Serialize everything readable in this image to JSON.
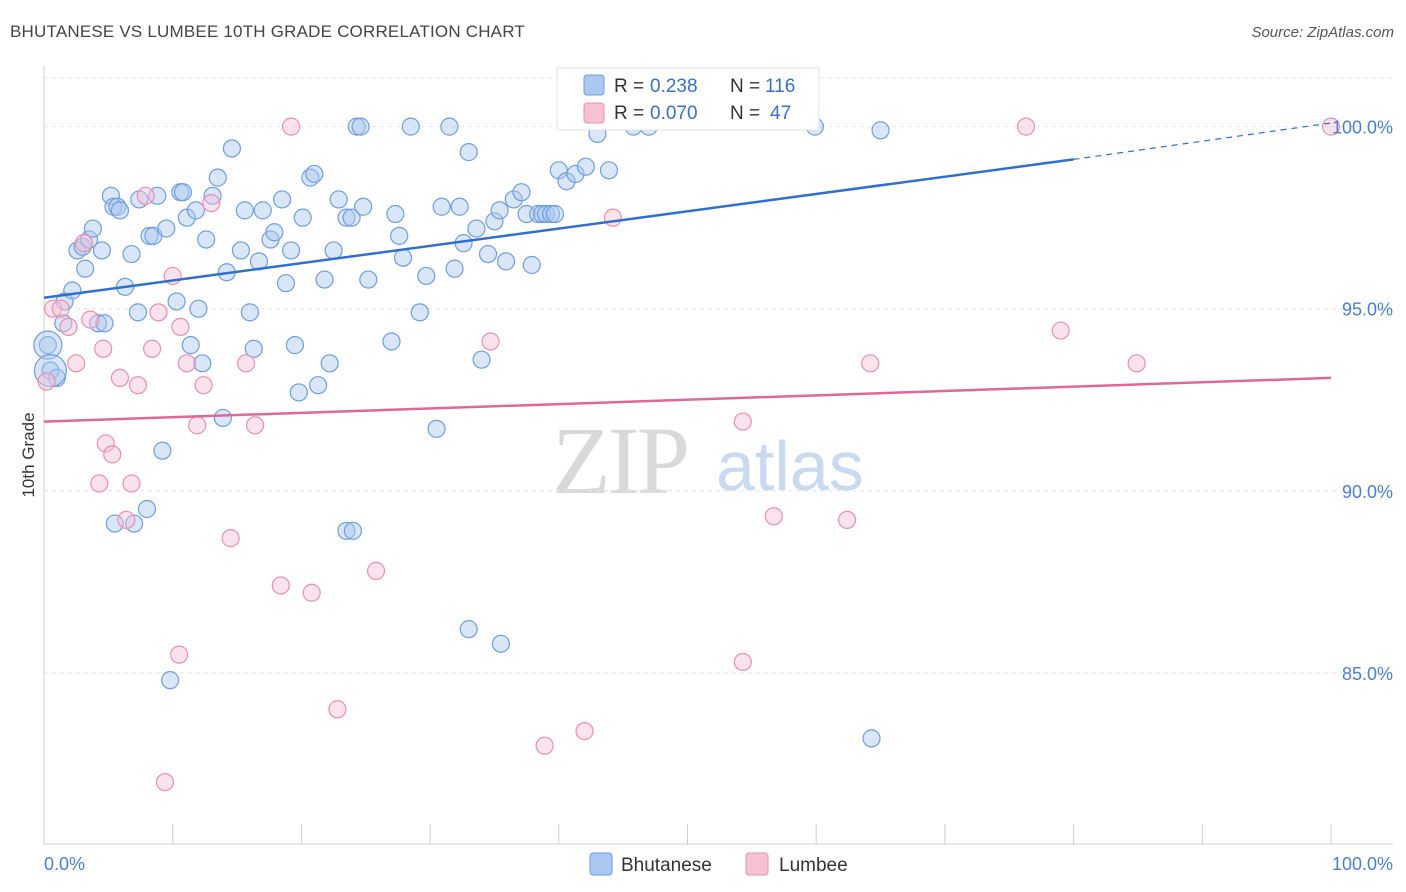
{
  "title": "BHUTANESE VS LUMBEE 10TH GRADE CORRELATION CHART",
  "source": "Source: ZipAtlas.com",
  "watermark": {
    "zip": "ZIP",
    "atlas": "atlas"
  },
  "chart_data": {
    "type": "scatter",
    "ylabel": "10th Grade",
    "xlim": [
      0,
      100
    ],
    "ylim": [
      80.3,
      101.5
    ],
    "x_tick_labels": [
      "0.0%",
      "100.0%"
    ],
    "y_ticks": [
      85,
      90,
      95,
      100
    ],
    "y_tick_labels": [
      "85.0%",
      "90.0%",
      "95.0%",
      "100.0%"
    ],
    "grid": true,
    "legend_top": [
      {
        "r_label": "R =",
        "r_value": "0.238",
        "n_label": "N =",
        "n_value": "116"
      },
      {
        "r_label": "R =",
        "r_value": "0.070",
        "n_label": "N =",
        "n_value": "47"
      }
    ],
    "series": [
      {
        "name": "Bhutanese",
        "color": "#6f9ee0",
        "fill": "#aac8f0",
        "trend": {
          "x0": 0,
          "y0": 95.3,
          "x1": 80,
          "y1": 99.1,
          "dash_to_x": 100,
          "dash_to_y": 100.1,
          "color": "#2f6fd0"
        },
        "points": [
          [
            0.3,
            94.0
          ],
          [
            0.5,
            93.3
          ],
          [
            1.0,
            93.1
          ],
          [
            1.5,
            94.6
          ],
          [
            1.6,
            95.2
          ],
          [
            2.2,
            95.5
          ],
          [
            2.6,
            96.6
          ],
          [
            3.0,
            96.7
          ],
          [
            3.2,
            96.1
          ],
          [
            3.5,
            96.9
          ],
          [
            3.8,
            97.2
          ],
          [
            4.2,
            94.6
          ],
          [
            4.5,
            96.6
          ],
          [
            4.7,
            94.6
          ],
          [
            5.2,
            98.1
          ],
          [
            5.4,
            97.8
          ],
          [
            5.7,
            97.8
          ],
          [
            5.9,
            97.7
          ],
          [
            6.3,
            95.6
          ],
          [
            6.8,
            96.5
          ],
          [
            7.3,
            94.9
          ],
          [
            7.4,
            98.0
          ],
          [
            8.2,
            97.0
          ],
          [
            8.5,
            97.0
          ],
          [
            8.8,
            98.1
          ],
          [
            9.2,
            91.1
          ],
          [
            9.5,
            97.2
          ],
          [
            9.8,
            84.8
          ],
          [
            10.3,
            95.2
          ],
          [
            10.6,
            98.2
          ],
          [
            10.8,
            98.2
          ],
          [
            11.1,
            97.5
          ],
          [
            11.4,
            94.0
          ],
          [
            11.8,
            97.7
          ],
          [
            12.0,
            95.0
          ],
          [
            12.3,
            93.5
          ],
          [
            12.6,
            96.9
          ],
          [
            13.1,
            98.1
          ],
          [
            13.5,
            98.6
          ],
          [
            13.9,
            92.0
          ],
          [
            14.2,
            96.0
          ],
          [
            14.6,
            99.4
          ],
          [
            15.3,
            96.6
          ],
          [
            15.6,
            97.7
          ],
          [
            16.0,
            94.9
          ],
          [
            16.3,
            93.9
          ],
          [
            16.7,
            96.3
          ],
          [
            17.0,
            97.7
          ],
          [
            17.6,
            96.9
          ],
          [
            17.9,
            97.1
          ],
          [
            18.5,
            98.0
          ],
          [
            18.8,
            95.7
          ],
          [
            19.2,
            96.6
          ],
          [
            19.5,
            94.0
          ],
          [
            19.8,
            92.7
          ],
          [
            20.1,
            97.5
          ],
          [
            20.7,
            98.6
          ],
          [
            21.0,
            98.7
          ],
          [
            21.3,
            92.9
          ],
          [
            21.8,
            95.8
          ],
          [
            22.2,
            93.5
          ],
          [
            22.5,
            96.6
          ],
          [
            22.9,
            98.0
          ],
          [
            23.5,
            97.5
          ],
          [
            23.9,
            97.5
          ],
          [
            24.3,
            100.0
          ],
          [
            24.6,
            100.0
          ],
          [
            24.8,
            97.8
          ],
          [
            25.2,
            95.8
          ],
          [
            27.0,
            94.1
          ],
          [
            27.3,
            97.6
          ],
          [
            27.6,
            97.0
          ],
          [
            27.9,
            96.4
          ],
          [
            28.5,
            100.0
          ],
          [
            29.2,
            94.9
          ],
          [
            29.7,
            95.9
          ],
          [
            30.5,
            91.7
          ],
          [
            30.9,
            97.8
          ],
          [
            31.5,
            100.0
          ],
          [
            31.9,
            96.1
          ],
          [
            32.3,
            97.8
          ],
          [
            32.6,
            96.8
          ],
          [
            33.0,
            99.3
          ],
          [
            33.6,
            97.2
          ],
          [
            34.0,
            93.6
          ],
          [
            34.5,
            96.5
          ],
          [
            35.0,
            97.4
          ],
          [
            35.4,
            97.7
          ],
          [
            35.9,
            96.3
          ],
          [
            36.5,
            98.0
          ],
          [
            37.1,
            98.2
          ],
          [
            37.5,
            97.6
          ],
          [
            37.9,
            96.2
          ],
          [
            38.4,
            97.6
          ],
          [
            38.7,
            97.6
          ],
          [
            39.0,
            97.6
          ],
          [
            39.4,
            97.6
          ],
          [
            39.7,
            97.6
          ],
          [
            40.0,
            98.8
          ],
          [
            40.6,
            98.5
          ],
          [
            41.3,
            98.7
          ],
          [
            42.1,
            98.9
          ],
          [
            43.0,
            99.8
          ],
          [
            43.9,
            98.8
          ],
          [
            45.8,
            100.0
          ],
          [
            47.0,
            100.0
          ],
          [
            59.9,
            100.0
          ],
          [
            64.3,
            83.2
          ],
          [
            65.0,
            99.9
          ],
          [
            33.0,
            86.2
          ],
          [
            35.5,
            85.8
          ],
          [
            8.0,
            89.5
          ],
          [
            7.0,
            89.1
          ],
          [
            5.5,
            89.1
          ],
          [
            23.5,
            88.9
          ],
          [
            24.0,
            88.9
          ]
        ]
      },
      {
        "name": "Lumbee",
        "color": "#e890b0",
        "fill": "#f5c2d4",
        "trend": {
          "x0": 0,
          "y0": 91.9,
          "x1": 100,
          "y1": 93.1,
          "color": "#e06898"
        },
        "points": [
          [
            0.2,
            93.0
          ],
          [
            0.7,
            95.0
          ],
          [
            1.3,
            95.0
          ],
          [
            1.9,
            94.5
          ],
          [
            2.5,
            93.5
          ],
          [
            3.1,
            96.8
          ],
          [
            3.6,
            94.7
          ],
          [
            4.3,
            90.2
          ],
          [
            4.6,
            93.9
          ],
          [
            4.8,
            91.3
          ],
          [
            5.3,
            91.0
          ],
          [
            5.9,
            93.1
          ],
          [
            6.4,
            89.2
          ],
          [
            6.8,
            90.2
          ],
          [
            7.3,
            92.9
          ],
          [
            7.9,
            98.1
          ],
          [
            8.4,
            93.9
          ],
          [
            8.9,
            94.9
          ],
          [
            9.4,
            82.0
          ],
          [
            10.0,
            95.9
          ],
          [
            10.5,
            85.5
          ],
          [
            10.6,
            94.5
          ],
          [
            11.1,
            93.5
          ],
          [
            11.9,
            91.8
          ],
          [
            12.4,
            92.9
          ],
          [
            13.0,
            97.9
          ],
          [
            14.5,
            88.7
          ],
          [
            15.7,
            93.5
          ],
          [
            16.4,
            91.8
          ],
          [
            18.4,
            87.4
          ],
          [
            20.8,
            87.2
          ],
          [
            22.8,
            84.0
          ],
          [
            25.8,
            87.8
          ],
          [
            19.2,
            100.0
          ],
          [
            34.7,
            94.1
          ],
          [
            38.9,
            83.0
          ],
          [
            42.0,
            83.4
          ],
          [
            44.2,
            97.5
          ],
          [
            54.3,
            85.3
          ],
          [
            54.3,
            91.9
          ],
          [
            56.7,
            89.3
          ],
          [
            62.4,
            89.2
          ],
          [
            64.2,
            93.5
          ],
          [
            76.3,
            100.0
          ],
          [
            79.0,
            94.4
          ],
          [
            84.9,
            93.5
          ],
          [
            100.0,
            100.0
          ]
        ]
      }
    ]
  },
  "bottom_legend": [
    {
      "label": "Bhutanese"
    },
    {
      "label": "Lumbee"
    }
  ]
}
